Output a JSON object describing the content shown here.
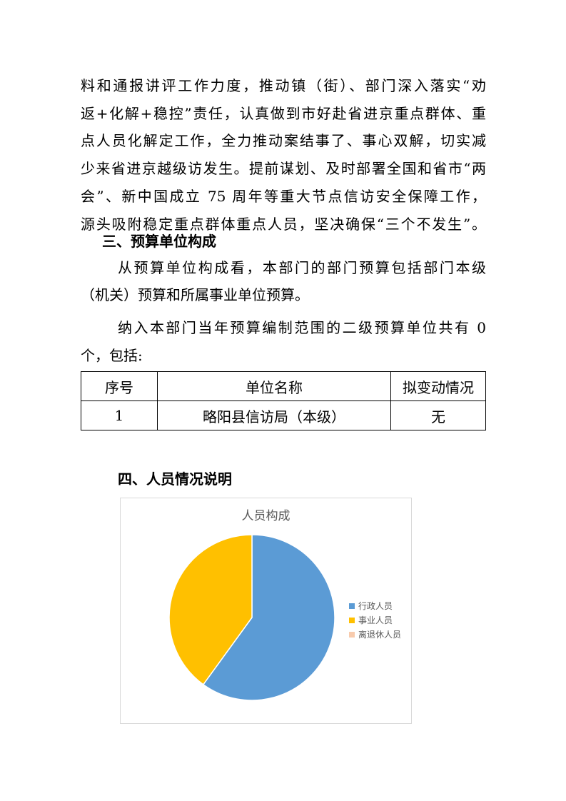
{
  "paragraph1": [
    "料和通报讲评工作力度，推动镇（街）、部门深入落实“劝",
    "返+化解+稳控”责任，认真做到市好赴省进京重点群体、重",
    "点人员化解定工作，全力推动案结事了、事心双解，切实减",
    "少来省进京越级访发生。提前谋划、及时部署全国和省市“两",
    "会”、新中国成立 75 周年等重大节点信访安全保障工作，",
    "源头吸附稳定重点群体重点人员，坚决确保“三个不发生”。"
  ],
  "heading3": "三、预算单位构成",
  "paragraph2": [
    "从预算单位构成看，本部门的部门预算包括部门本级",
    "（机关）预算和所属事业单位预算。"
  ],
  "paragraph3": [
    "纳入本部门当年预算编制范围的二级预算单位共有 0",
    "个，包括:"
  ],
  "table": {
    "headers": [
      "序号",
      "单位名称",
      "拟变动情况"
    ],
    "rows": [
      [
        "1",
        "略阳县信访局（本级）",
        "无"
      ]
    ]
  },
  "heading4": "四、人员情况说明",
  "chart_data": {
    "type": "pie",
    "title": "人员构成",
    "labels": [
      "行政人员",
      "事业人员",
      "离退休人员"
    ],
    "values": [
      60,
      40,
      0
    ],
    "colors": [
      "#5b9bd5",
      "#ffc000",
      "#f8cbad"
    ],
    "legend": "right"
  }
}
